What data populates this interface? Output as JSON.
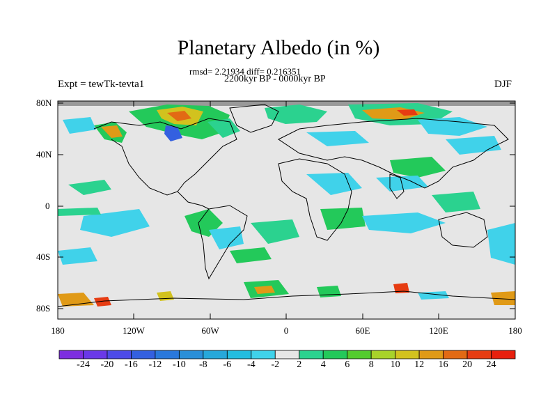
{
  "title": "Planetary Albedo (in %)",
  "stats_text": "rmsd= 2.21934 diff= 0.216351",
  "period_text": "2200kyr BP - 0000kyr BP",
  "experiment_text": "Expt = tewTk-tevta1",
  "season_text": "DJF",
  "axes": {
    "y_ticks": [
      "80N",
      "40N",
      "0",
      "40S",
      "80S"
    ],
    "x_ticks": [
      "180",
      "120W",
      "60W",
      "0",
      "60E",
      "120E",
      "180"
    ]
  },
  "colorbar": {
    "labels": [
      "-24",
      "-20",
      "-16",
      "-12",
      "-10",
      "-8",
      "-6",
      "-4",
      "-2",
      "2",
      "4",
      "6",
      "8",
      "10",
      "12",
      "16",
      "20",
      "24"
    ],
    "colors": [
      "#7d2ee0",
      "#6a38e8",
      "#4d4be8",
      "#3460e0",
      "#2a78dc",
      "#2a8fd8",
      "#27a8da",
      "#24bde0",
      "#40d2ea",
      "#e6e6e6",
      "#2bd28f",
      "#23c95a",
      "#53cc2e",
      "#a8d22a",
      "#d2c21e",
      "#e09a17",
      "#e26a14",
      "#e63c12",
      "#e8200e"
    ]
  },
  "background_colors": {
    "no_change": "#e6e6e6",
    "missing": "#999999",
    "coastline": "#000000"
  }
}
